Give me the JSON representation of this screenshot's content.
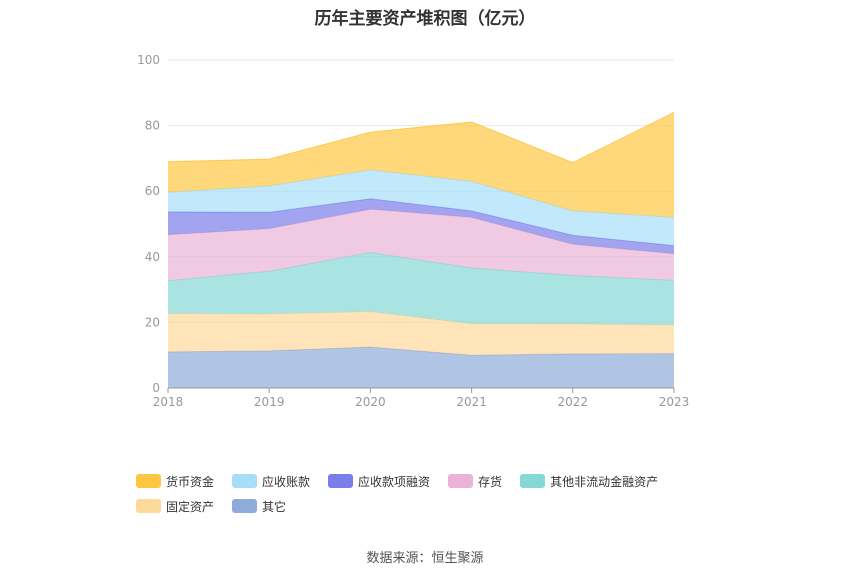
{
  "title": "历年主要资产堆积图（亿元）",
  "source": "数据来源：恒生聚源",
  "chart_data": {
    "type": "area",
    "stacked": true,
    "title": "历年主要资产堆积图（亿元）",
    "x": [
      "2018",
      "2019",
      "2020",
      "2021",
      "2022",
      "2023"
    ],
    "ylim": [
      0,
      100
    ],
    "yticks": [
      0,
      20,
      40,
      60,
      80,
      100
    ],
    "grid": true,
    "legend_position": "bottom",
    "series": [
      {
        "name": "其它",
        "color": "#8fabd9",
        "values": [
          11.0,
          11.3,
          12.5,
          10.0,
          10.4,
          10.5
        ]
      },
      {
        "name": "固定资产",
        "color": "#fdd99a",
        "values": [
          11.7,
          11.3,
          10.8,
          9.6,
          9.1,
          8.7
        ]
      },
      {
        "name": "其他非流动金融资产",
        "color": "#86d8d6",
        "values": [
          10.0,
          13.0,
          18.0,
          17.0,
          14.8,
          13.6
        ]
      },
      {
        "name": "存货",
        "color": "#eab3d7",
        "values": [
          14.0,
          13.0,
          13.2,
          15.4,
          9.5,
          8.1
        ]
      },
      {
        "name": "应收款项融资",
        "color": "#7a7eea",
        "values": [
          7.0,
          5.0,
          3.2,
          2.0,
          2.8,
          2.5
        ]
      },
      {
        "name": "应收账款",
        "color": "#a6def9",
        "values": [
          6.0,
          8.0,
          8.8,
          9.0,
          7.4,
          8.6
        ]
      },
      {
        "name": "货币资金",
        "color": "#fec742",
        "values": [
          9.3,
          8.2,
          11.5,
          18.1,
          14.7,
          32.0
        ]
      }
    ],
    "legend_order": [
      "货币资金",
      "应收账款",
      "应收款项融资",
      "存货",
      "其他非流动金融资产",
      "固定资产",
      "其它"
    ]
  }
}
